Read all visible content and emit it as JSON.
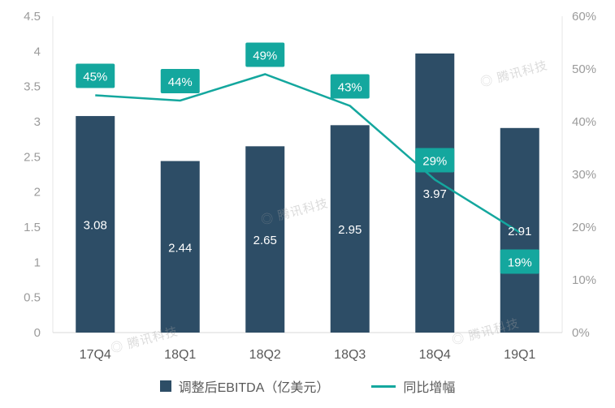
{
  "watermark": "腾讯科技",
  "chart_data": {
    "type": "combo",
    "title": "",
    "categories": [
      "17Q4",
      "18Q1",
      "18Q2",
      "18Q3",
      "18Q4",
      "19Q1"
    ],
    "series": [
      {
        "name": "调整后EBITDA（亿美元）",
        "type": "bar",
        "unit": "亿美元",
        "axis": "left",
        "color": "#2d4d66",
        "values": [
          3.08,
          2.44,
          2.65,
          2.95,
          3.97,
          2.91
        ],
        "value_labels": [
          "3.08",
          "2.44",
          "2.65",
          "2.95",
          "3.97",
          "2.91"
        ]
      },
      {
        "name": "同比增幅",
        "type": "line",
        "unit": "%",
        "axis": "right",
        "color": "#14a79e",
        "values": [
          45,
          44,
          49,
          43,
          29,
          19
        ],
        "value_labels": [
          "45%",
          "44%",
          "49%",
          "43%",
          "29%",
          "19%"
        ]
      }
    ],
    "left_axis": {
      "min": 0,
      "max": 4.5,
      "ticks": [
        "4.5",
        "4",
        "3.5",
        "3",
        "2.5",
        "2",
        "1.5",
        "1",
        "0.5",
        "0"
      ]
    },
    "right_axis": {
      "min": 0,
      "max": 60,
      "ticks": [
        "60%",
        "50%",
        "40%",
        "30%",
        "20%",
        "10%",
        "0%"
      ]
    },
    "legend": {
      "position": "bottom",
      "items": [
        "调整后EBITDA（亿美元）",
        "同比增幅"
      ]
    },
    "grid": false
  }
}
